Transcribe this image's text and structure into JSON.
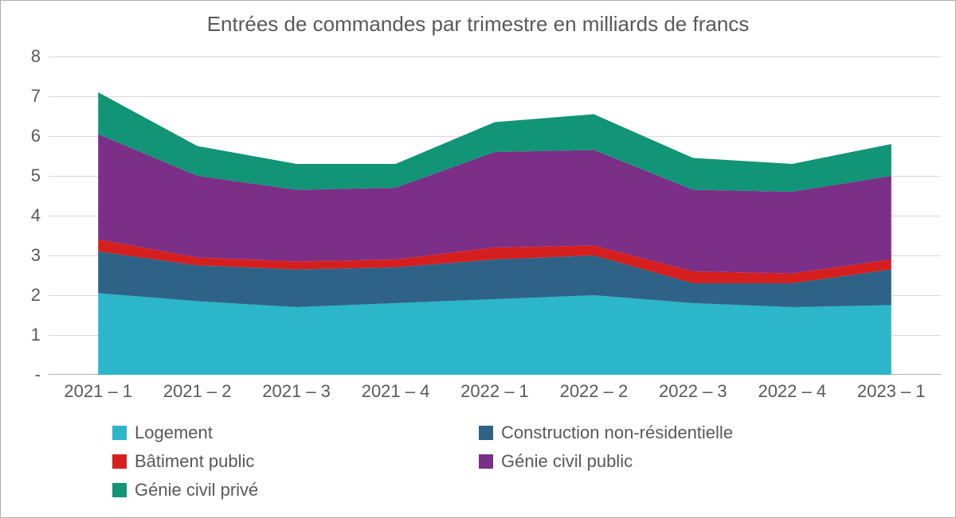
{
  "chart": {
    "type": "stacked-area",
    "title": "Entrées de commandes par trimestre en milliards de francs",
    "title_fontsize": 26,
    "title_color": "#595959",
    "background_color": "#ffffff",
    "border_color": "#b0b0b0",
    "grid_color": "#d9d9d9",
    "label_color": "#595959",
    "label_fontsize": 22,
    "ylim": [
      0,
      8
    ],
    "ytick_step": 1,
    "yticks": [
      "-",
      "1",
      "2",
      "3",
      "4",
      "5",
      "6",
      "7",
      "8"
    ],
    "categories": [
      "2021 – 1",
      "2021 – 2",
      "2021 – 3",
      "2021 – 4",
      "2022 – 1",
      "2022 – 2",
      "2022 – 3",
      "2022 – 4",
      "2023 – 1"
    ],
    "series": [
      {
        "name": "Logement",
        "color": "#2cb6c9",
        "values": [
          2.05,
          1.85,
          1.7,
          1.8,
          1.9,
          2.0,
          1.8,
          1.7,
          1.75
        ]
      },
      {
        "name": "Construction non-résidentielle",
        "color": "#2e6387",
        "values": [
          1.05,
          0.9,
          0.95,
          0.9,
          1.0,
          1.0,
          0.5,
          0.6,
          0.9
        ]
      },
      {
        "name": "Bâtiment public",
        "color": "#d51f1f",
        "values": [
          0.3,
          0.2,
          0.2,
          0.2,
          0.3,
          0.25,
          0.3,
          0.25,
          0.25
        ]
      },
      {
        "name": "Génie civil public",
        "color": "#7b2f87",
        "values": [
          2.65,
          2.05,
          1.8,
          1.8,
          2.4,
          2.4,
          2.05,
          2.05,
          2.1
        ]
      },
      {
        "name": "Génie civil privé",
        "color": "#129476",
        "values": [
          1.05,
          0.75,
          0.65,
          0.6,
          0.75,
          0.9,
          0.8,
          0.7,
          0.8
        ]
      }
    ],
    "legend_layout": [
      [
        0,
        1
      ],
      [
        2,
        3
      ],
      [
        4
      ]
    ]
  }
}
